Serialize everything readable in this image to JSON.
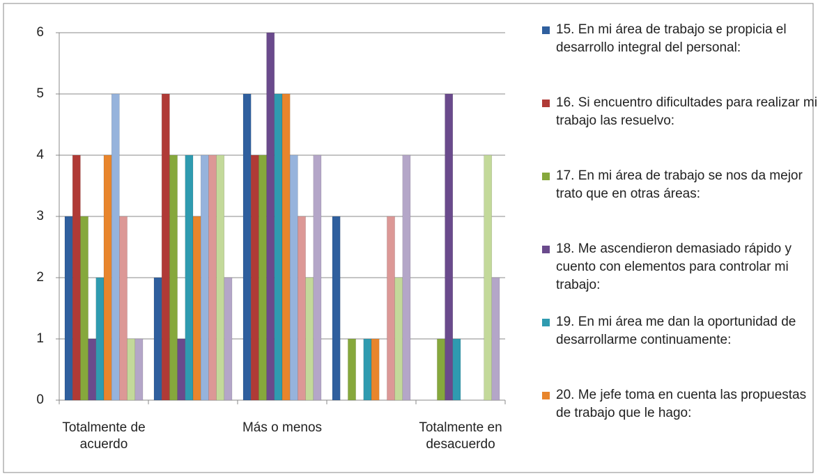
{
  "chart_data": {
    "type": "bar",
    "categories": [
      "Totalmente de acuerdo",
      null,
      "Más o menos",
      null,
      "Totalmente en desacuerdo"
    ],
    "ylim": [
      0,
      6
    ],
    "yticks": [
      0,
      1,
      2,
      3,
      4,
      5,
      6
    ],
    "grid": true,
    "legend": "right",
    "series": [
      {
        "name": "15. En mi área de trabajo se propicia el desarrollo integral del personal:",
        "color": "#2f5f9e",
        "values": [
          3,
          2,
          5,
          3,
          0
        ]
      },
      {
        "name": "16. Si encuentro dificultades para realizar mi trabajo las resuelvo:",
        "color": "#b03a36",
        "values": [
          4,
          5,
          4,
          0,
          0
        ]
      },
      {
        "name": "17. En mi área de trabajo se nos da mejor trato que en otras áreas:",
        "color": "#86a83c",
        "values": [
          3,
          4,
          4,
          1,
          1
        ]
      },
      {
        "name": "18. Me ascendieron demasiado rápido y cuento con elementos para controlar mi trabajo:",
        "color": "#6a4a8c",
        "values": [
          1,
          1,
          6,
          0,
          5
        ]
      },
      {
        "name": "19. En mi área me dan la oportunidad de desarrollarme continuamente:",
        "color": "#2f9bb0",
        "values": [
          2,
          4,
          5,
          1,
          1
        ]
      },
      {
        "name": "20. Me jefe toma en cuenta las propuestas de trabajo que le hago:",
        "color": "#e8852c",
        "values": [
          4,
          3,
          5,
          1,
          0
        ]
      },
      {
        "color": "#96b3dc",
        "values": [
          5,
          4,
          4,
          0,
          0
        ]
      },
      {
        "color": "#dc9896",
        "values": [
          3,
          4,
          3,
          3,
          0
        ]
      },
      {
        "color": "#c3d99a",
        "values": [
          1,
          4,
          2,
          2,
          4
        ]
      },
      {
        "color": "#b4a6c8",
        "values": [
          1,
          2,
          4,
          4,
          2
        ]
      }
    ]
  }
}
